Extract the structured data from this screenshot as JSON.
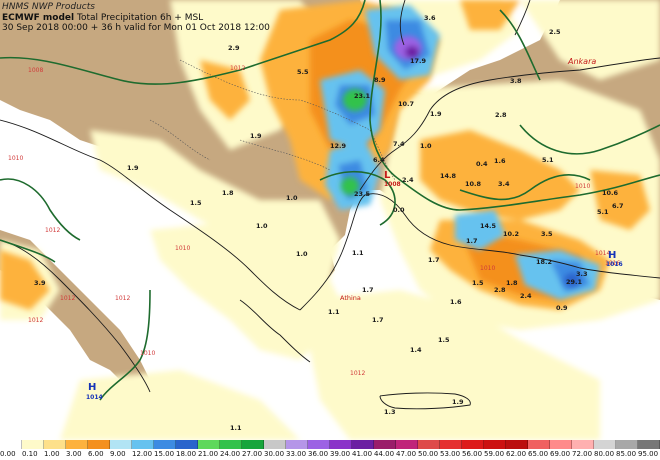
{
  "header": {
    "product": "HNMS NWP Products",
    "model": "ECMWF model",
    "title": "Total Precipitation 6h + MSL",
    "validity": "30 Sep 2018 00:00 + 36 h valid for Mon 01 Oct 2018 12:00"
  },
  "legend": {
    "labels": [
      "0.00",
      "0.10",
      "1.00",
      "3.00",
      "6.00",
      "9.00",
      "12.00",
      "15.00",
      "18.00",
      "21.00",
      "24.00",
      "27.00",
      "30.00",
      "33.00",
      "36.00",
      "39.00",
      "41.00",
      "44.00",
      "47.00",
      "50.00",
      "53.00",
      "56.00",
      "59.00",
      "62.00",
      "65.00",
      "69.00",
      "72.00",
      "80.00",
      "85.00",
      "95.00"
    ],
    "colors": [
      "#ffffff",
      "#fefaca",
      "#fde08a",
      "#fdb23e",
      "#f4901e",
      "#b2e4f4",
      "#66c2ef",
      "#3d8be2",
      "#2a64cc",
      "#5fd85b",
      "#33c24b",
      "#17a53c",
      "#c8c8c8",
      "#b596e8",
      "#9c62e4",
      "#8a33c9",
      "#6c1fa2",
      "#9a1d6a",
      "#c0247a",
      "#de4a4a",
      "#e53030",
      "#dd1a1a",
      "#cc1111",
      "#bb0f0f",
      "#f06060",
      "#ff8a8a",
      "#ffb0b0",
      "#d4d4d4",
      "#a8a8a8",
      "#777777"
    ]
  },
  "places": {
    "ankara": "Ankara",
    "athina": "Athina"
  },
  "pressure_centres": [
    {
      "type": "H",
      "value": "1016"
    },
    {
      "type": "H",
      "value": "1014"
    },
    {
      "type": "L",
      "value": "1008"
    }
  ],
  "isobar_labels": [
    "1008",
    "1010",
    "1012",
    "1012",
    "1012",
    "1010",
    "1010",
    "1012",
    "1014",
    "1016",
    "1010",
    "1010",
    "1012",
    "1012"
  ],
  "precip_values": [
    "3.6",
    "2.5",
    "17.9",
    "2.9",
    "5.5",
    "8.9",
    "23.1",
    "10.7",
    "3.8",
    "2.8",
    "1.9",
    "1.9",
    "1.9",
    "12.9",
    "7.4",
    "1.0",
    "0.4",
    "5.1",
    "6.4",
    "14.8",
    "1.6",
    "3.4",
    "2.4",
    "10.8",
    "10.6",
    "1.8",
    "6.7",
    "23.5",
    "0.0",
    "1.5",
    "1.0",
    "5.1",
    "1.0",
    "14.5",
    "10.2",
    "3.5",
    "3.9",
    "1.7",
    "18.2",
    "1.7",
    "29.1",
    "3.3",
    "1.7",
    "1.8",
    "1.1",
    "2.4",
    "1.7",
    "1.5",
    "1.5",
    "0.9",
    "2.8",
    "1.0",
    "1.1",
    "1.6",
    "1.3",
    "1.9",
    "1.1",
    "1.4"
  ]
}
